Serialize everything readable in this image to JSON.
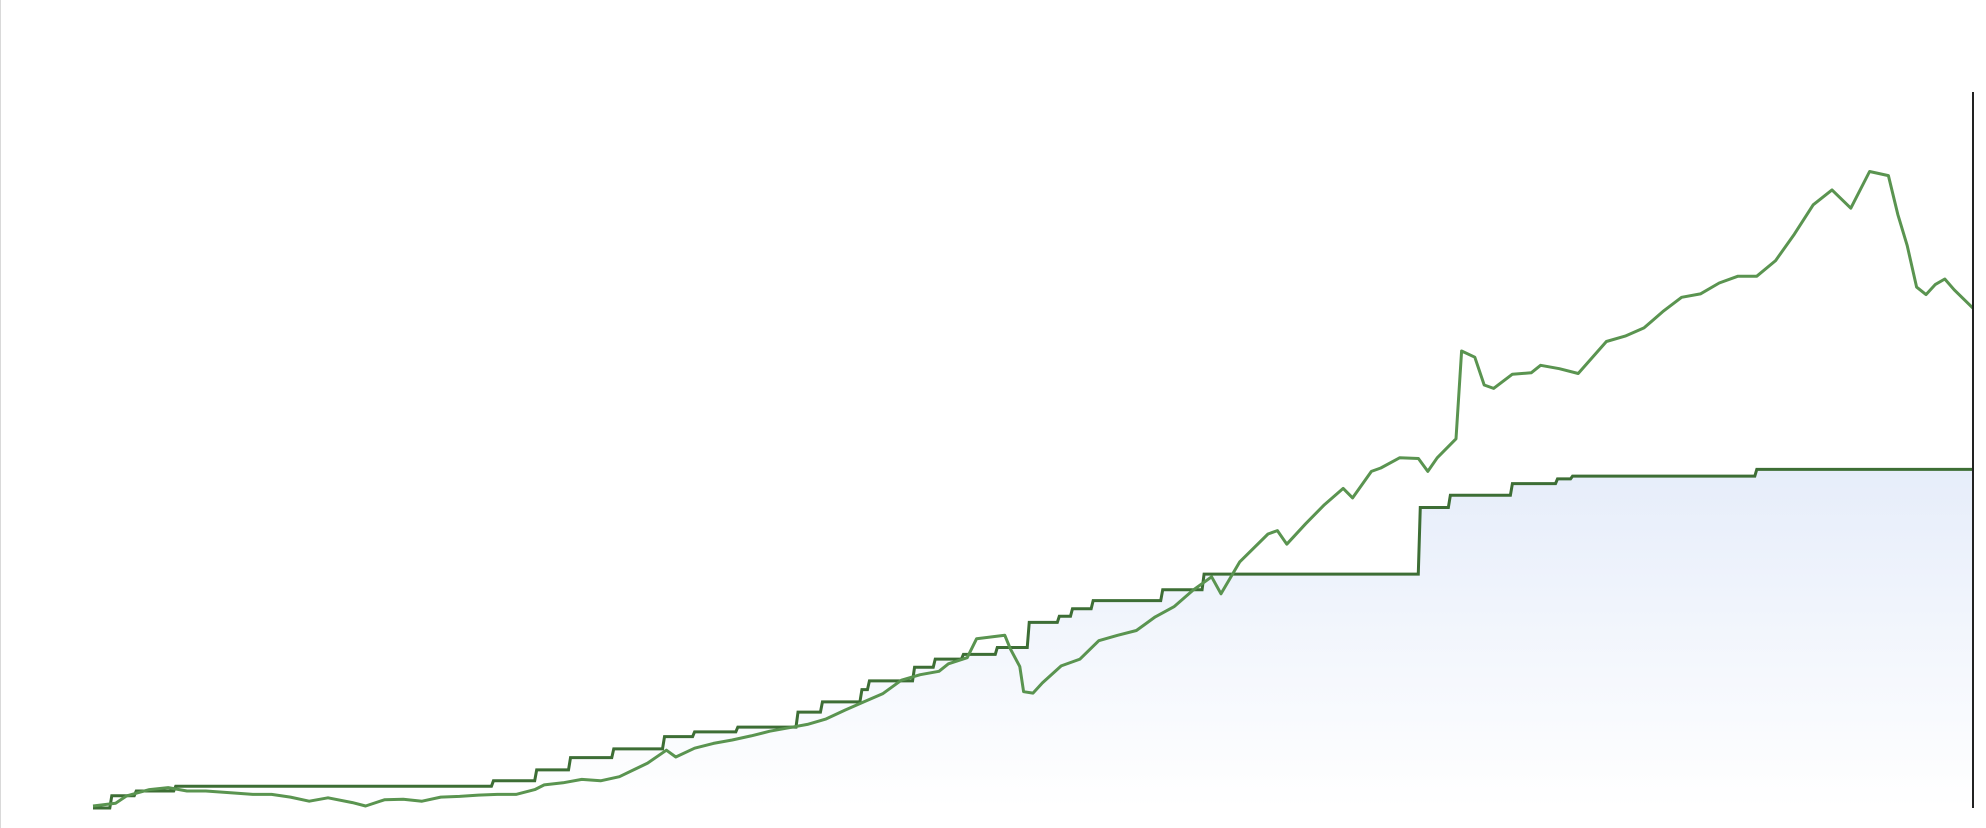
{
  "chart_data": {
    "type": "line",
    "title": "",
    "xlabel": "",
    "ylabel": "",
    "xlim": [
      0,
      100
    ],
    "ylim": [
      0,
      100
    ],
    "grid": false,
    "legend": "none",
    "colors": {
      "market_line": "#5a9450",
      "step_line": "#3d6e35",
      "area_fill_top": "#e6edfa",
      "area_fill_bottom": "#ffffff",
      "cursor_line": "#222222"
    },
    "series": [
      {
        "id": "market",
        "points": [
          [
            0,
            0.3
          ],
          [
            1.2,
            0.7
          ],
          [
            1.8,
            1.8
          ],
          [
            3,
            2.7
          ],
          [
            4,
            3.0
          ],
          [
            5,
            2.5
          ],
          [
            6,
            2.5
          ],
          [
            7.5,
            2.2
          ],
          [
            8.5,
            2.0
          ],
          [
            9.5,
            2.0
          ],
          [
            10.5,
            1.6
          ],
          [
            11.5,
            1.0
          ],
          [
            12.5,
            1.5
          ],
          [
            13.8,
            0.8
          ],
          [
            14.5,
            0.3
          ],
          [
            15.5,
            1.2
          ],
          [
            16.5,
            1.3
          ],
          [
            17.5,
            1.0
          ],
          [
            18.5,
            1.6
          ],
          [
            19.5,
            1.7
          ],
          [
            20.5,
            1.9
          ],
          [
            21.5,
            2.0
          ],
          [
            22.5,
            2.0
          ],
          [
            23.5,
            2.7
          ],
          [
            24,
            3.4
          ],
          [
            25,
            3.7
          ],
          [
            26,
            4.2
          ],
          [
            27,
            4.0
          ],
          [
            28,
            4.6
          ],
          [
            29.5,
            6.6
          ],
          [
            30.5,
            8.5
          ],
          [
            31,
            7.5
          ],
          [
            32,
            8.8
          ],
          [
            33,
            9.5
          ],
          [
            34,
            10.0
          ],
          [
            35,
            10.6
          ],
          [
            36,
            11.3
          ],
          [
            37,
            11.8
          ],
          [
            38,
            12.3
          ],
          [
            39,
            13.1
          ],
          [
            40,
            14.4
          ],
          [
            41,
            15.6
          ],
          [
            42,
            16.8
          ],
          [
            43,
            18.8
          ],
          [
            44,
            19.6
          ],
          [
            45,
            20.1
          ],
          [
            45.5,
            21.2
          ],
          [
            46.5,
            22.1
          ],
          [
            47,
            24.9
          ],
          [
            48.5,
            25.4
          ],
          [
            48.8,
            23.4
          ],
          [
            49.3,
            20.8
          ],
          [
            49.5,
            17.1
          ],
          [
            50,
            16.9
          ],
          [
            50.5,
            18.4
          ],
          [
            51.5,
            20.9
          ],
          [
            52.5,
            21.9
          ],
          [
            53.5,
            24.6
          ],
          [
            54.5,
            25.4
          ],
          [
            55.5,
            26.1
          ],
          [
            56.5,
            28.1
          ],
          [
            57.5,
            29.6
          ],
          [
            58.5,
            32.0
          ],
          [
            59.5,
            34.0
          ],
          [
            60,
            31.5
          ],
          [
            61,
            36.2
          ],
          [
            62.5,
            40.3
          ],
          [
            63,
            40.8
          ],
          [
            63.5,
            38.8
          ],
          [
            64.5,
            41.8
          ],
          [
            65.5,
            44.6
          ],
          [
            66.5,
            47.0
          ],
          [
            67,
            45.6
          ],
          [
            68,
            49.5
          ],
          [
            68.5,
            50.0
          ],
          [
            69.5,
            51.5
          ],
          [
            70.5,
            51.4
          ],
          [
            71,
            49.5
          ],
          [
            71.5,
            51.5
          ],
          [
            72.5,
            54.3
          ],
          [
            72.8,
            67.2
          ],
          [
            73.5,
            66.3
          ],
          [
            74,
            62.2
          ],
          [
            74.5,
            61.7
          ],
          [
            75.5,
            63.8
          ],
          [
            76.5,
            64.0
          ],
          [
            77,
            65.1
          ],
          [
            78,
            64.6
          ],
          [
            79,
            63.9
          ],
          [
            80.5,
            68.6
          ],
          [
            81.5,
            69.4
          ],
          [
            82.5,
            70.6
          ],
          [
            83.5,
            73.0
          ],
          [
            84.5,
            75.1
          ],
          [
            85.5,
            75.6
          ],
          [
            86.5,
            77.2
          ],
          [
            87.5,
            78.2
          ],
          [
            88.5,
            78.2
          ],
          [
            89.5,
            80.5
          ],
          [
            90.5,
            84.4
          ],
          [
            91.5,
            88.7
          ],
          [
            92.5,
            90.9
          ],
          [
            93.5,
            88.2
          ],
          [
            94.5,
            93.6
          ],
          [
            95.5,
            93.0
          ],
          [
            96,
            87.3
          ],
          [
            96.5,
            82.7
          ],
          [
            97,
            76.6
          ],
          [
            97.5,
            75.5
          ],
          [
            98,
            77.0
          ],
          [
            98.5,
            77.8
          ],
          [
            99,
            76.2
          ],
          [
            100,
            73.5
          ]
        ]
      },
      {
        "id": "step",
        "step": true,
        "points": [
          [
            0,
            0.0
          ],
          [
            1.0,
            1.8
          ],
          [
            2.3,
            2.5
          ],
          [
            4.4,
            3.2
          ],
          [
            21.3,
            4.0
          ],
          [
            23.6,
            5.6
          ],
          [
            25.4,
            7.4
          ],
          [
            27.7,
            8.7
          ],
          [
            30.4,
            10.5
          ],
          [
            32.0,
            11.2
          ],
          [
            34.3,
            11.9
          ],
          [
            37.5,
            14.1
          ],
          [
            38.8,
            15.6
          ],
          [
            40.9,
            17.4
          ],
          [
            41.3,
            18.7
          ],
          [
            43.7,
            20.7
          ],
          [
            44.8,
            21.9
          ],
          [
            46.3,
            22.6
          ],
          [
            48.1,
            23.6
          ],
          [
            49.8,
            27.3
          ],
          [
            51.4,
            28.2
          ],
          [
            52.1,
            29.3
          ],
          [
            53.2,
            30.5
          ],
          [
            56.9,
            32.1
          ],
          [
            59.1,
            34.4
          ],
          [
            70.6,
            44.2
          ],
          [
            72.2,
            46.0
          ],
          [
            75.5,
            47.7
          ],
          [
            77.9,
            48.4
          ],
          [
            78.7,
            48.8
          ],
          [
            88.5,
            49.8
          ],
          [
            100,
            49.8
          ]
        ]
      }
    ]
  }
}
